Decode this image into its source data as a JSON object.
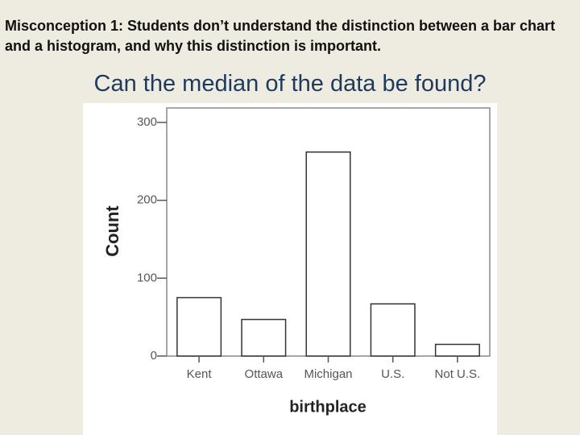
{
  "slide": {
    "heading": "Misconception 1: Students don’t understand the distinction between a bar chart and a histogram, and why this distinction is important.",
    "question": "Can the median of the data be found?"
  },
  "chart_data": {
    "type": "bar",
    "x_label": "birthplace",
    "y_label": "Count",
    "categories": [
      "Kent",
      "Ottawa",
      "Michigan",
      "U.S.",
      "Not U.S."
    ],
    "values": [
      75,
      47,
      262,
      67,
      15
    ],
    "color": "#ffffff",
    "ylim": [
      0,
      300
    ],
    "yticks": [
      0,
      100,
      200,
      300
    ],
    "grid": false
  }
}
